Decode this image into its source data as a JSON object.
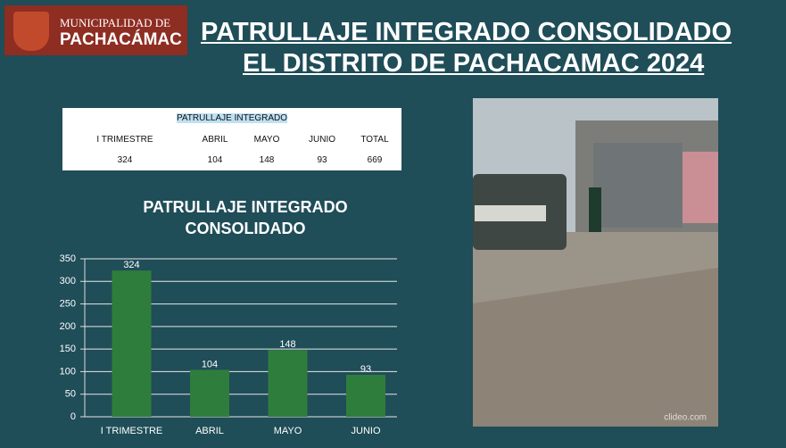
{
  "header": {
    "logo_line1": "MUNICIPALIDAD DE",
    "logo_line2": "PACHACÁMAC",
    "title_line1": "PATRULLAJE INTEGRADO CONSOLIDADO",
    "title_line2": "EL DISTRITO DE PACHACAMAC 2024"
  },
  "table": {
    "title": "PATRULLAJE INTEGRADO",
    "headers": [
      "I TRIMESTRE",
      "ABRIL",
      "MAYO",
      "JUNIO",
      "TOTAL"
    ],
    "rows": [
      [
        324,
        104,
        148,
        93,
        669
      ]
    ]
  },
  "chart_data": {
    "type": "bar",
    "title": "PATRULLAJE INTEGRADO CONSOLIDADO",
    "categories": [
      "I TRIMESTRE",
      "ABRIL",
      "MAYO",
      "JUNIO"
    ],
    "values": [
      324,
      104,
      148,
      93
    ],
    "color": "#2f7d3c",
    "ylim": [
      0,
      350
    ],
    "yticks": [
      0,
      50,
      100,
      150,
      200,
      250,
      300,
      350
    ],
    "grid": true
  },
  "photo": {
    "watermark": "clideo.com"
  }
}
